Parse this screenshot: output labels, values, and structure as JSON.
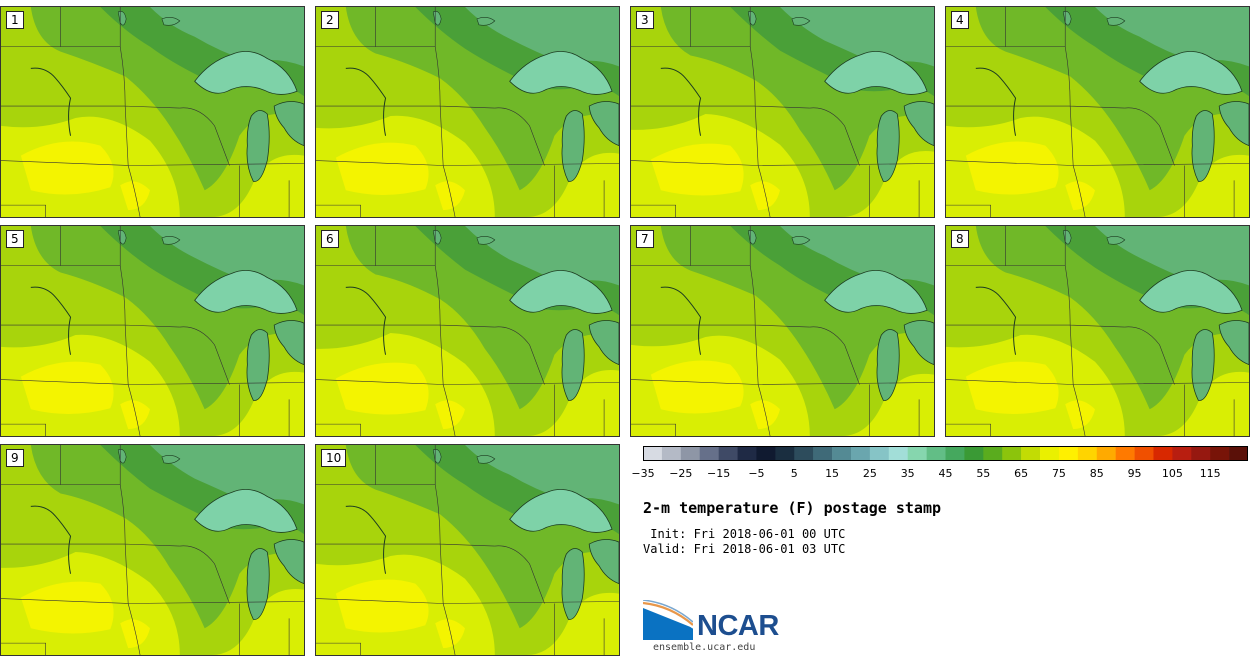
{
  "figure": {
    "title": "2-m temperature (F) postage stamp",
    "init_line": " Init: Fri 2018-06-01 00 UTC",
    "valid_line": "Valid: Fri 2018-06-01 03 UTC"
  },
  "panels": [
    {
      "label": "1"
    },
    {
      "label": "2"
    },
    {
      "label": "3"
    },
    {
      "label": "4"
    },
    {
      "label": "5"
    },
    {
      "label": "6"
    },
    {
      "label": "7"
    },
    {
      "label": "8"
    },
    {
      "label": "9"
    },
    {
      "label": "10"
    }
  ],
  "colorbar": {
    "ticks": [
      "−35",
      "−25",
      "−15",
      "−5",
      "5",
      "15",
      "25",
      "35",
      "45",
      "55",
      "65",
      "75",
      "85",
      "95",
      "105",
      "115"
    ],
    "colors": [
      "#d7dbe3",
      "#b4bac6",
      "#8e96a6",
      "#66708a",
      "#3f4a66",
      "#1f2a45",
      "#101a30",
      "#1a2e40",
      "#2d4c5c",
      "#3f6a78",
      "#548a94",
      "#6aa6ae",
      "#86c4c6",
      "#a2ded8",
      "#86d6ae",
      "#62be86",
      "#45a85e",
      "#3a9a35",
      "#5aac1e",
      "#8cc40c",
      "#c2dc04",
      "#eaf000",
      "#fff000",
      "#ffd400",
      "#ffaa00",
      "#ff7a00",
      "#f05000",
      "#d82800",
      "#b81e10",
      "#961810",
      "#781408",
      "#5a1008"
    ]
  },
  "logo": {
    "name": "NCAR",
    "url": "ensemble.ucar.edu"
  },
  "map_colors": {
    "warm": "#d9ee04",
    "hot": "#f4f400",
    "mid": "#a8d40c",
    "cool": "#70b828",
    "cooler": "#4aa038",
    "cold": "#62b476",
    "lake": "#7ed2a8"
  }
}
